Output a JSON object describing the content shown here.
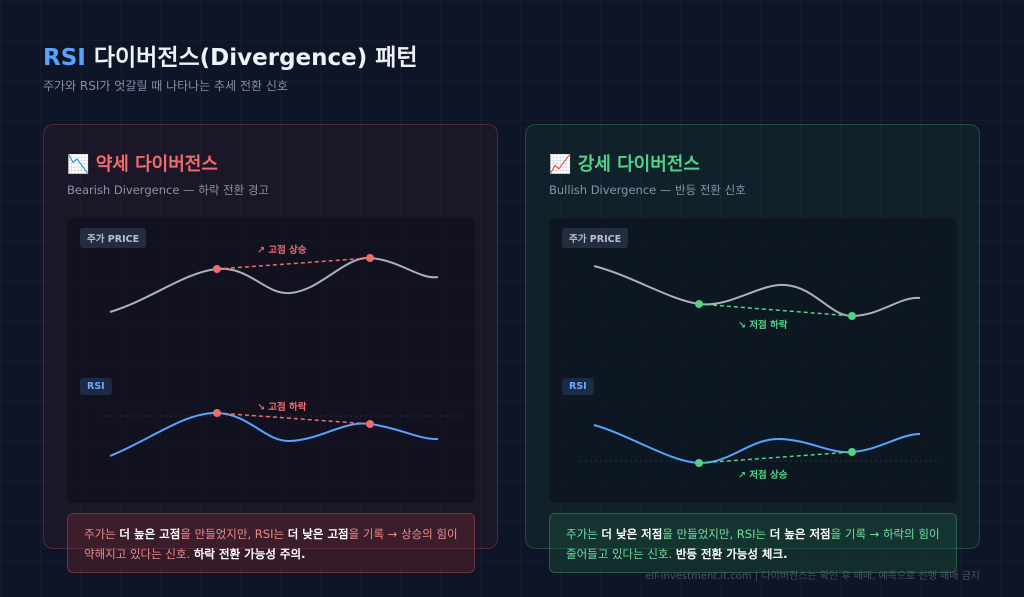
{
  "header": {
    "title_parts": [
      "RSI",
      "다이버전스(Divergence) 패턴"
    ],
    "subtitle": "주가와 RSI가 엇갈릴 때 나타나는 추세 전환 신호"
  },
  "panels": [
    {
      "icon": "📉",
      "title": "약세 다이버전스",
      "subtitle": "Bearish Divergence — 하락 전환 경고",
      "price_label": "주가 PRICE",
      "price_annotation": "↗ 고점 상승",
      "rsi_label": "RSI",
      "rsi_annotation": "↘ 고점 하락",
      "note": [
        {
          "text": "주가는 "
        },
        {
          "text": "더 높은 고점",
          "strong": true
        },
        {
          "text": "을 만들었지만, RSI는 "
        },
        {
          "text": "더 낮은 고점",
          "strong": true
        },
        {
          "text": "을 기록 → 상승의 힘이 약해지고 있다는 신호. "
        },
        {
          "text": "하락 전환 가능성 주의.",
          "strong": true
        }
      ]
    },
    {
      "icon": "📈",
      "title": "강세 다이버전스",
      "subtitle": "Bullish Divergence — 반등 전환 신호",
      "price_label": "주가 PRICE",
      "price_annotation": "↘ 저점 하락",
      "rsi_label": "RSI",
      "rsi_annotation": "↗ 저점 상승",
      "note": [
        {
          "text": "주가는 "
        },
        {
          "text": "더 낮은 저점",
          "strong": true
        },
        {
          "text": "을 만들었지만, RSI는 "
        },
        {
          "text": "더 높은 저점",
          "strong": true
        },
        {
          "text": "을 기록 → 하락의 힘이 줄어들고 있다는 신호. "
        },
        {
          "text": "반등 전환 가능성 체크.",
          "strong": true
        }
      ]
    }
  ],
  "footer": "elf-investment.it.com | 다이버전스는 확인 후 매매, 예측으로 선행 매매 금지"
}
